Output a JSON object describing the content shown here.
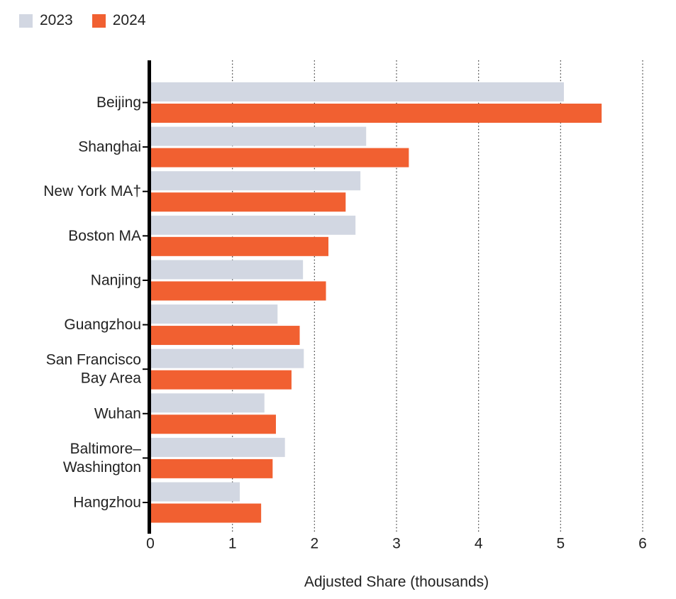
{
  "legend": {
    "items": [
      {
        "label": "2023",
        "color": "#D2D7E2"
      },
      {
        "label": "2024",
        "color": "#F16031"
      }
    ]
  },
  "chart_data": {
    "type": "bar",
    "orientation": "horizontal",
    "title": "",
    "xlabel": "Adjusted Share (thousands)",
    "ylabel": "",
    "xlim": [
      0,
      6
    ],
    "xticks": [
      0,
      1,
      2,
      3,
      4,
      5,
      6
    ],
    "grid": "dotted-vertical",
    "legend_position": "top-left",
    "categories": [
      "Beijing",
      "Shanghai",
      "New York MA†",
      "Boston MA",
      "Nanjing",
      "Guangzhou",
      "San Francisco\nBay Area",
      "Wuhan",
      "Baltimore–\nWashington",
      "Hangzhou"
    ],
    "series": [
      {
        "name": "2023",
        "color": "#D2D7E2",
        "values": [
          5.04,
          2.63,
          2.56,
          2.5,
          1.86,
          1.55,
          1.87,
          1.39,
          1.64,
          1.09
        ]
      },
      {
        "name": "2024",
        "color": "#F16031",
        "values": [
          5.5,
          3.15,
          2.38,
          2.17,
          2.14,
          1.82,
          1.72,
          1.53,
          1.49,
          1.35
        ]
      }
    ]
  },
  "colors": {
    "axis": "#000000",
    "gridline": "#3c3c3c",
    "text": "#222222"
  }
}
